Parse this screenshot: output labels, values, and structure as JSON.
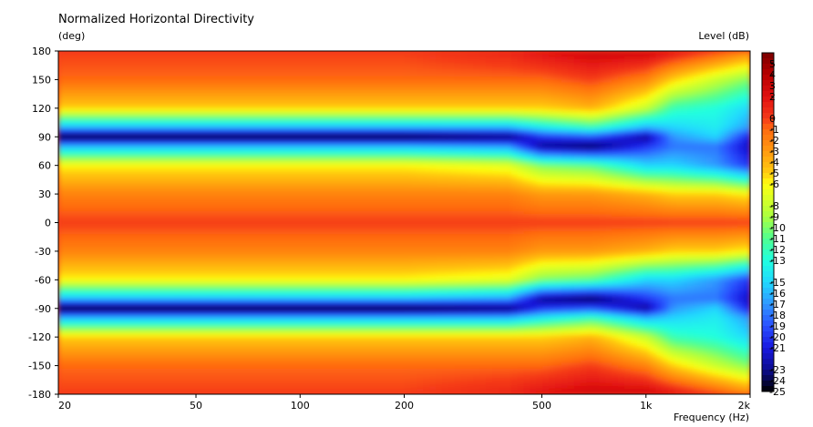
{
  "chart_data": {
    "type": "heatmap",
    "title": "Normalized Horizontal Directivity",
    "ylabel": "(deg)",
    "xlabel": "Frequency  (Hz)",
    "colorbar_label": "Level  (dB)",
    "x_scale": "log",
    "xlim": [
      20,
      2000
    ],
    "ylim": [
      -180,
      180
    ],
    "x_ticks": [
      {
        "value": 20,
        "label": "20"
      },
      {
        "value": 50,
        "label": "50"
      },
      {
        "value": 100,
        "label": "100"
      },
      {
        "value": 200,
        "label": "200"
      },
      {
        "value": 500,
        "label": "500"
      },
      {
        "value": 1000,
        "label": "1k"
      },
      {
        "value": 2000,
        "label": "2k"
      }
    ],
    "y_ticks": [
      {
        "value": 180,
        "label": "180"
      },
      {
        "value": 150,
        "label": "150"
      },
      {
        "value": 120,
        "label": "120"
      },
      {
        "value": 90,
        "label": "90"
      },
      {
        "value": 60,
        "label": "60"
      },
      {
        "value": 30,
        "label": "30"
      },
      {
        "value": 0,
        "label": "0"
      },
      {
        "value": -30,
        "label": "-30"
      },
      {
        "value": -60,
        "label": "-60"
      },
      {
        "value": -90,
        "label": "-90"
      },
      {
        "value": -120,
        "label": "-120"
      },
      {
        "value": -150,
        "label": "-150"
      },
      {
        "value": -180,
        "label": "-180"
      }
    ],
    "colorbar": {
      "range": [
        -25,
        6
      ],
      "ticks": [
        5,
        4,
        3,
        2,
        0,
        -1,
        -2,
        -3,
        -4,
        -5,
        -6,
        -8,
        -9,
        -10,
        -11,
        -12,
        -13,
        -15,
        -16,
        -17,
        -18,
        -19,
        -20,
        -21,
        -23,
        -24,
        -25
      ],
      "colors": {
        "6": "#7a0000",
        "4": "#b80000",
        "2": "#e01010",
        "0": "#f53a1a",
        "-1": "#ff6a10",
        "-3": "#ff9a10",
        "-5": "#ffcc10",
        "-6": "#ffff10",
        "-9": "#aaff40",
        "-11": "#50ff90",
        "-13": "#20ffe0",
        "-15": "#20d8ff",
        "-17": "#3098ff",
        "-19": "#2a50ff",
        "-21": "#1818e0",
        "-23": "#0c0c90",
        "-25": "#000000"
      }
    },
    "frequencies": [
      20,
      50,
      100,
      200,
      400,
      500,
      700,
      1000,
      1200,
      1600,
      2000
    ],
    "angles": [
      0,
      30,
      60,
      80,
      90,
      100,
      120,
      150,
      180
    ],
    "levels_db": [
      [
        0,
        -2,
        -6,
        -16,
        -25,
        -16,
        -5,
        -1,
        0
      ],
      [
        0,
        -2,
        -6,
        -16,
        -25,
        -16,
        -5,
        -1,
        0
      ],
      [
        0,
        -2,
        -6,
        -16,
        -25,
        -16,
        -5,
        -1,
        0
      ],
      [
        0,
        -2,
        -6,
        -16,
        -25,
        -16,
        -5,
        -1,
        0
      ],
      [
        0,
        -2,
        -7,
        -17,
        -24,
        -16,
        -5,
        -1,
        1
      ],
      [
        0,
        -3,
        -10,
        -23,
        -20,
        -14,
        -5,
        -1,
        2
      ],
      [
        0,
        -3,
        -11,
        -24,
        -19,
        -12,
        -4,
        0,
        3
      ],
      [
        0,
        -4,
        -15,
        -20,
        -23,
        -16,
        -8,
        -2,
        3
      ],
      [
        0,
        -5,
        -15,
        -18,
        -17,
        -15,
        -12,
        -5,
        2
      ],
      [
        0,
        -5,
        -17,
        -18,
        -15,
        -14,
        -13,
        -8,
        0
      ],
      [
        0,
        -6,
        -20,
        -22,
        -21,
        -17,
        -15,
        -10,
        -2
      ]
    ]
  }
}
